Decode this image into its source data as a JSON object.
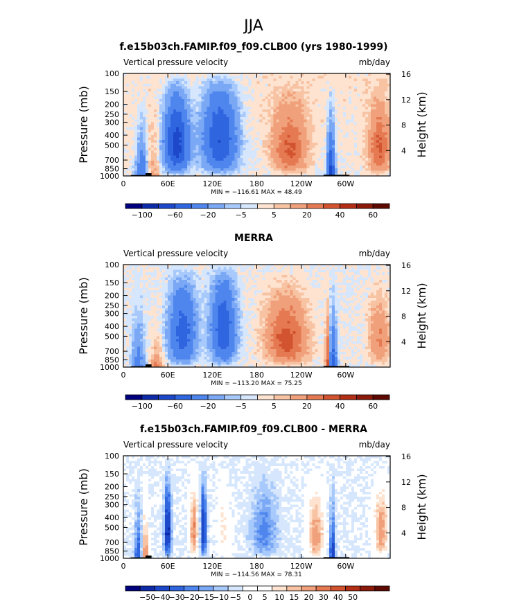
{
  "season_title": "JJA",
  "colors": {
    "abs": [
      "#00007f",
      "#0d2aa8",
      "#1c48c9",
      "#2f66e0",
      "#4f86ee",
      "#7aa8f5",
      "#a8c9fb",
      "#d6e7fd",
      "#fde3d0",
      "#f8c3a3",
      "#f0a07a",
      "#e57a52",
      "#d2532f",
      "#b22f16",
      "#8b1a0a",
      "#5e0a02"
    ],
    "diff": [
      "#00007f",
      "#0d2aa8",
      "#1c48c9",
      "#2f66e0",
      "#4f86ee",
      "#7aa8f5",
      "#a8c9fb",
      "#d6e7fd",
      "#ffffff",
      "#ffffff",
      "#fde3d0",
      "#f8c3a3",
      "#f0a07a",
      "#e57a52",
      "#d2532f",
      "#b22f16",
      "#8b1a0a",
      "#5e0a02"
    ]
  },
  "chart_data": [
    {
      "type": "heatmap",
      "title": "f.e15b03ch.FAMIP.f09_f09.CLB00 (yrs 1980-1999)",
      "left_string": "Vertical pressure velocity",
      "right_string": "mb/day",
      "ylabel": "Pressure (mb)",
      "ylabel_right": "Height (km)",
      "yticks": [
        "100",
        "150",
        "200",
        "250",
        "300",
        "400",
        "500",
        "700",
        "850",
        "1000"
      ],
      "yticks_right": [
        "16",
        "12",
        "8",
        "4"
      ],
      "xticks": [
        "0",
        "60E",
        "120E",
        "180",
        "120W",
        "60W"
      ],
      "stats": "MIN = −116.61   MAX =   48.49",
      "colorbar_labels": [
        "−100",
        "−60",
        "−20",
        "−5",
        "5",
        "20",
        "40",
        "60"
      ],
      "xlim": [
        0,
        360
      ],
      "ylim": [
        1000,
        100
      ]
    },
    {
      "type": "heatmap",
      "title": "MERRA",
      "left_string": "Vertical pressure velocity",
      "right_string": "mb/day",
      "ylabel": "Pressure (mb)",
      "ylabel_right": "Height (km)",
      "yticks": [
        "100",
        "150",
        "200",
        "250",
        "300",
        "400",
        "500",
        "700",
        "850",
        "1000"
      ],
      "yticks_right": [
        "16",
        "12",
        "8",
        "4"
      ],
      "xticks": [
        "0",
        "60E",
        "120E",
        "180",
        "120W",
        "60W"
      ],
      "stats": "MIN = −113.20   MAX =   75.25",
      "colorbar_labels": [
        "−100",
        "−60",
        "−20",
        "−5",
        "5",
        "20",
        "40",
        "60"
      ],
      "xlim": [
        0,
        360
      ],
      "ylim": [
        1000,
        100
      ]
    },
    {
      "type": "heatmap",
      "title": "f.e15b03ch.FAMIP.f09_f09.CLB00 - MERRA",
      "left_string": "Vertical pressure velocity",
      "right_string": "mb/day",
      "ylabel": "Pressure (mb)",
      "ylabel_right": "Height (km)",
      "yticks": [
        "100",
        "150",
        "200",
        "250",
        "300",
        "400",
        "500",
        "700",
        "850",
        "1000"
      ],
      "yticks_right": [
        "16",
        "12",
        "8",
        "4"
      ],
      "xticks": [
        "0",
        "60E",
        "120E",
        "180",
        "120W",
        "60W"
      ],
      "stats": "MIN = −114.56   MAX =   78.31",
      "colorbar_labels": [
        "−50",
        "−40",
        "−30",
        "−20",
        "−15",
        "−10",
        "−5",
        "0",
        "5",
        "10",
        "15",
        "20",
        "30",
        "40",
        "50"
      ],
      "xlim": [
        0,
        360
      ],
      "ylim": [
        1000,
        100
      ]
    }
  ]
}
